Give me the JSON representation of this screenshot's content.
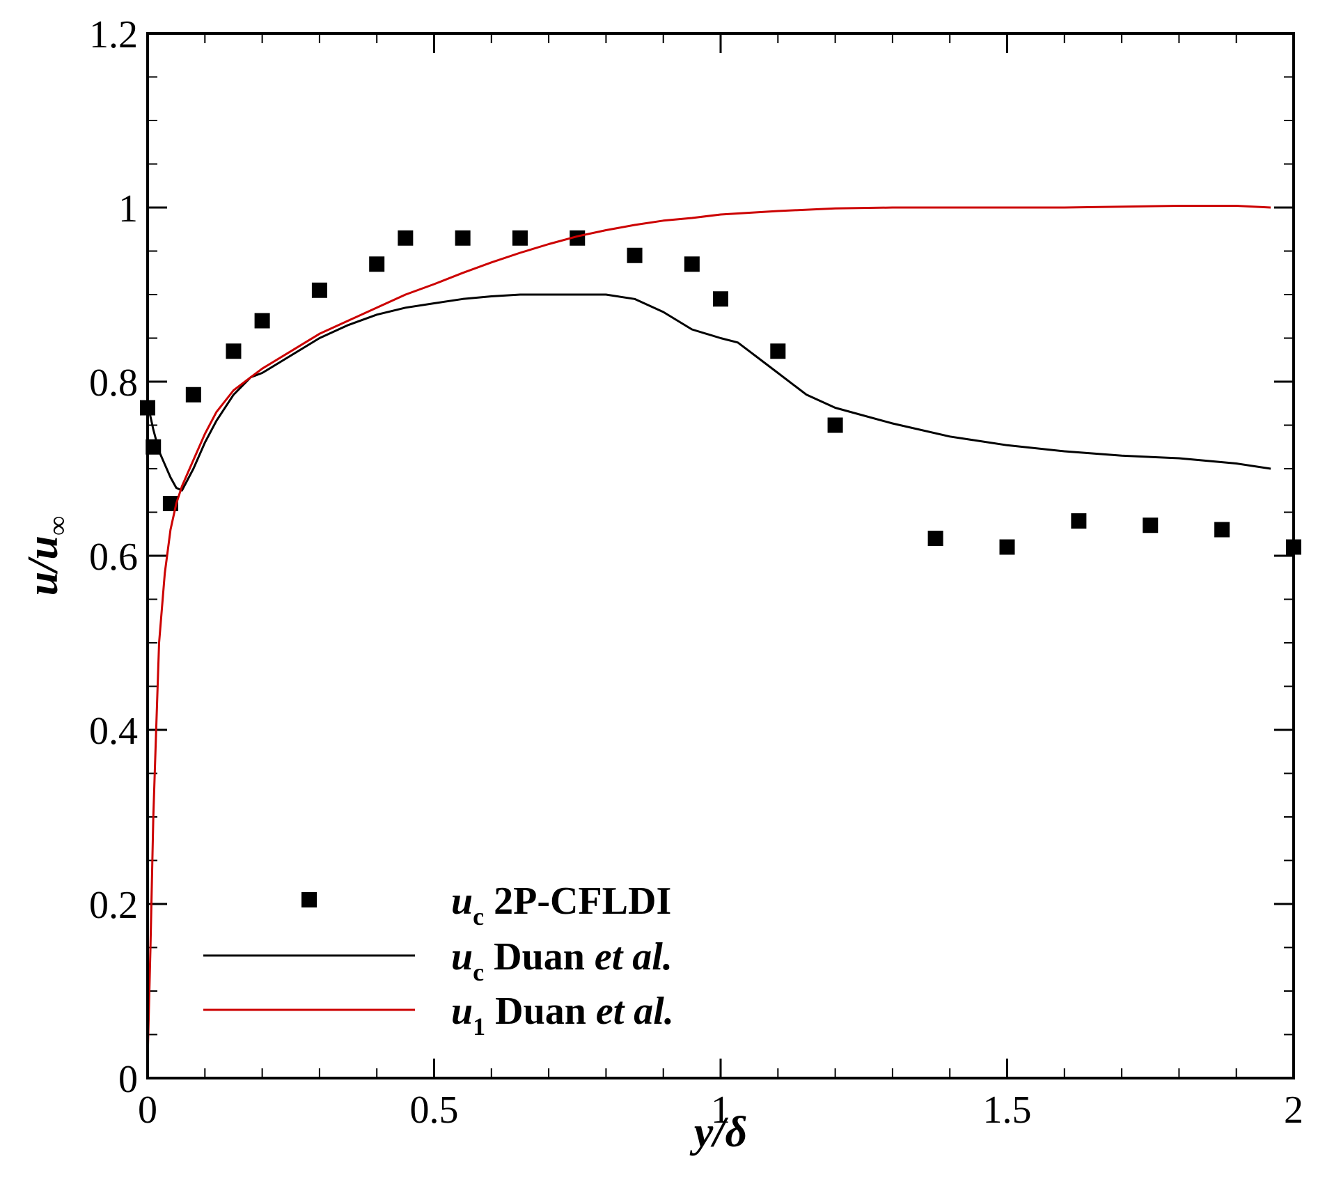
{
  "chart_data": {
    "type": "scatter",
    "title": "",
    "xlabel": {
      "main": "y",
      "sep": "/",
      "sub": "δ"
    },
    "ylabel": {
      "main": "u",
      "sep": "/",
      "sub": "u",
      "subscript": "∞"
    },
    "xlim": [
      0,
      2
    ],
    "ylim": [
      0,
      1.2
    ],
    "xticks": [
      0,
      0.5,
      1,
      1.5,
      2
    ],
    "xtick_labels": [
      "0",
      "0.5",
      "1",
      "1.5",
      "2"
    ],
    "yticks": [
      0,
      0.2,
      0.4,
      0.6,
      0.8,
      1,
      1.2
    ],
    "ytick_labels": [
      "0",
      "0.2",
      "0.4",
      "0.6",
      "0.8",
      "1",
      "1.2"
    ],
    "x_minor_step": 0.1,
    "y_minor_step": 0.05,
    "grid": false,
    "legend_position": "lower-left",
    "series": [
      {
        "kind": "markers",
        "legend": {
          "sym": "u",
          "sub": "c",
          "text": " 2P-CFLDI",
          "em": ""
        },
        "color": "#000000",
        "x": [
          0.0,
          0.01,
          0.04,
          0.08,
          0.15,
          0.2,
          0.3,
          0.4,
          0.45,
          0.55,
          0.65,
          0.75,
          0.85,
          0.95,
          1.0,
          1.1,
          1.2,
          1.375,
          1.5,
          1.625,
          1.75,
          1.875,
          2.0
        ],
        "y": [
          0.77,
          0.725,
          0.66,
          0.785,
          0.835,
          0.87,
          0.905,
          0.935,
          0.965,
          0.965,
          0.965,
          0.965,
          0.945,
          0.935,
          0.895,
          0.835,
          0.75,
          0.62,
          0.61,
          0.64,
          0.635,
          0.63,
          0.61
        ]
      },
      {
        "kind": "line",
        "legend": {
          "sym": "u",
          "sub": "c",
          "text": " Duan ",
          "em": "et al."
        },
        "color": "#000000",
        "x": [
          0.0,
          0.01,
          0.02,
          0.03,
          0.04,
          0.05,
          0.06,
          0.08,
          0.1,
          0.12,
          0.15,
          0.18,
          0.2,
          0.25,
          0.3,
          0.35,
          0.4,
          0.45,
          0.5,
          0.55,
          0.6,
          0.65,
          0.7,
          0.75,
          0.8,
          0.85,
          0.9,
          0.95,
          1.0,
          1.03,
          1.06,
          1.1,
          1.15,
          1.2,
          1.3,
          1.4,
          1.5,
          1.6,
          1.7,
          1.8,
          1.9,
          1.96
        ],
        "y": [
          0.775,
          0.745,
          0.72,
          0.705,
          0.69,
          0.678,
          0.675,
          0.7,
          0.73,
          0.755,
          0.785,
          0.805,
          0.81,
          0.83,
          0.85,
          0.865,
          0.877,
          0.885,
          0.89,
          0.895,
          0.898,
          0.9,
          0.9,
          0.9,
          0.9,
          0.895,
          0.88,
          0.86,
          0.85,
          0.845,
          0.83,
          0.81,
          0.785,
          0.77,
          0.752,
          0.737,
          0.727,
          0.72,
          0.715,
          0.712,
          0.706,
          0.7
        ]
      },
      {
        "kind": "line",
        "legend": {
          "sym": "u",
          "sub": "1",
          "text": "  Duan ",
          "em": "et al."
        },
        "color": "#cc0000",
        "x": [
          0.0,
          0.005,
          0.01,
          0.015,
          0.02,
          0.03,
          0.04,
          0.05,
          0.06,
          0.08,
          0.1,
          0.12,
          0.15,
          0.18,
          0.2,
          0.25,
          0.3,
          0.35,
          0.4,
          0.45,
          0.5,
          0.55,
          0.6,
          0.65,
          0.7,
          0.75,
          0.8,
          0.85,
          0.9,
          0.95,
          1.0,
          1.1,
          1.2,
          1.3,
          1.4,
          1.5,
          1.6,
          1.7,
          1.8,
          1.9,
          1.96
        ],
        "y": [
          0.02,
          0.15,
          0.3,
          0.4,
          0.5,
          0.58,
          0.63,
          0.66,
          0.68,
          0.71,
          0.74,
          0.765,
          0.79,
          0.805,
          0.815,
          0.835,
          0.855,
          0.87,
          0.885,
          0.9,
          0.912,
          0.925,
          0.937,
          0.948,
          0.958,
          0.967,
          0.974,
          0.98,
          0.985,
          0.988,
          0.992,
          0.996,
          0.999,
          1.0,
          1.0,
          1.0,
          1.0,
          1.001,
          1.002,
          1.002,
          1.0
        ]
      }
    ]
  }
}
